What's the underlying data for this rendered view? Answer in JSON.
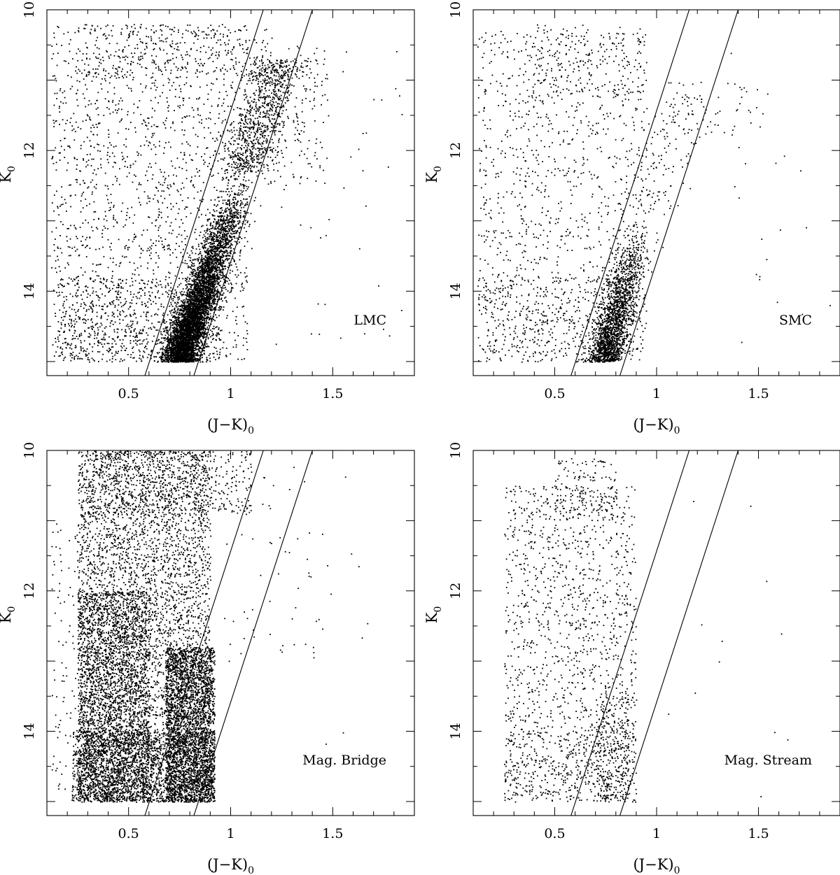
{
  "chart_data": [
    {
      "type": "scatter",
      "panel_label": "LMC",
      "xlabel": "(J−K)",
      "xlabel_subscript": "0",
      "ylabel": "K",
      "ylabel_subscript": "0",
      "xlim": [
        0.1,
        1.9
      ],
      "ylim": [
        10.0,
        15.2
      ],
      "y_inverted": true,
      "xticks": [
        0.5,
        1,
        1.5
      ],
      "xtick_labels": [
        "0.5",
        "1",
        "1.5"
      ],
      "yticks": [
        10,
        12,
        14
      ],
      "ytick_labels": [
        "10",
        "12",
        "14"
      ],
      "grid": false,
      "legend": "none",
      "lines": [
        {
          "name": "",
          "points": [
            [
              0.58,
              15.2
            ],
            [
              1.16,
              10.0
            ]
          ]
        },
        {
          "name": "",
          "points": [
            [
              0.82,
              15.2
            ],
            [
              1.4,
              10.0
            ]
          ]
        }
      ],
      "populations": [
        {
          "comment_free": true,
          "kind": "uniform",
          "n": 1700,
          "x": [
            0.12,
            1.08
          ],
          "y": [
            10.2,
            15.0
          ]
        },
        {
          "kind": "uniform",
          "n": 750,
          "x": [
            0.15,
            0.95
          ],
          "y": [
            13.8,
            15.0
          ]
        },
        {
          "kind": "uniform",
          "n": 250,
          "x": [
            0.25,
            1.2
          ],
          "y": [
            10.2,
            11.0
          ]
        },
        {
          "kind": "uniform",
          "n": 160,
          "x": [
            1.1,
            1.48
          ],
          "y": [
            10.5,
            12.5
          ]
        },
        {
          "kind": "uniform",
          "n": 45,
          "x": [
            1.2,
            1.85
          ],
          "y": [
            10.5,
            15.0
          ]
        },
        {
          "kind": "band",
          "n": 5500,
          "x_at_bottom": 0.74,
          "slope": 0.118,
          "width": 0.045,
          "y": [
            12.1,
            15.0
          ],
          "bottom_weight": 1.6
        },
        {
          "kind": "band",
          "n": 900,
          "x_at_bottom": 0.74,
          "slope": 0.118,
          "width": 0.07,
          "y": [
            10.7,
            12.3
          ],
          "bottom_weight": 0
        }
      ]
    },
    {
      "type": "scatter",
      "panel_label": "SMC",
      "xlabel": "(J−K)",
      "xlabel_subscript": "0",
      "ylabel": "K",
      "ylabel_subscript": "0",
      "xlim": [
        0.1,
        1.9
      ],
      "ylim": [
        10.0,
        15.2
      ],
      "y_inverted": true,
      "xticks": [
        0.5,
        1,
        1.5
      ],
      "xtick_labels": [
        "0.5",
        "1",
        "1.5"
      ],
      "yticks": [
        10,
        12,
        14
      ],
      "ytick_labels": [
        "10",
        "12",
        "14"
      ],
      "grid": false,
      "legend": "none",
      "lines": [
        {
          "name": "",
          "points": [
            [
              0.58,
              15.2
            ],
            [
              1.16,
              10.0
            ]
          ]
        },
        {
          "name": "",
          "points": [
            [
              0.82,
              15.2
            ],
            [
              1.4,
              10.0
            ]
          ]
        }
      ],
      "populations": [
        {
          "kind": "uniform",
          "n": 1150,
          "x": [
            0.12,
            0.95
          ],
          "y": [
            10.3,
            15.0
          ]
        },
        {
          "kind": "uniform",
          "n": 350,
          "x": [
            0.12,
            0.9
          ],
          "y": [
            13.8,
            15.0
          ]
        },
        {
          "kind": "uniform",
          "n": 140,
          "x": [
            0.35,
            0.95
          ],
          "y": [
            10.2,
            11.2
          ]
        },
        {
          "kind": "band",
          "n": 1800,
          "x_at_bottom": 0.74,
          "slope": 0.085,
          "width": 0.045,
          "y": [
            12.9,
            15.0
          ],
          "bottom_weight": 1.4
        },
        {
          "kind": "band",
          "n": 140,
          "x_at_bottom": 0.74,
          "slope": 0.1,
          "width": 0.07,
          "y": [
            11.2,
            12.9
          ],
          "bottom_weight": 0
        },
        {
          "kind": "uniform",
          "n": 55,
          "x": [
            1.05,
            1.55
          ],
          "y": [
            11.0,
            11.8
          ]
        },
        {
          "kind": "uniform",
          "n": 20,
          "x": [
            1.3,
            1.85
          ],
          "y": [
            10.5,
            15.0
          ]
        }
      ]
    },
    {
      "type": "scatter",
      "panel_label": "Mag. Bridge",
      "xlabel": "(J−K)",
      "xlabel_subscript": "0",
      "ylabel": "K",
      "ylabel_subscript": "0",
      "xlim": [
        0.1,
        1.9
      ],
      "ylim": [
        10.0,
        15.2
      ],
      "y_inverted": true,
      "xticks": [
        0.5,
        1,
        1.5
      ],
      "xtick_labels": [
        "0.5",
        "1",
        "1.5"
      ],
      "yticks": [
        10,
        12,
        14
      ],
      "ytick_labels": [
        "10",
        "12",
        "14"
      ],
      "grid": false,
      "legend": "none",
      "lines": [
        {
          "name": "",
          "points": [
            [
              0.58,
              15.2
            ],
            [
              1.16,
              10.0
            ]
          ]
        },
        {
          "name": "",
          "points": [
            [
              0.82,
              15.2
            ],
            [
              1.4,
              10.0
            ]
          ]
        }
      ],
      "populations": [
        {
          "kind": "uniform",
          "n": 4500,
          "x": [
            0.25,
            0.9
          ],
          "y": [
            10.0,
            15.0
          ]
        },
        {
          "kind": "uniform",
          "n": 2600,
          "x": [
            0.25,
            0.6
          ],
          "y": [
            12.0,
            15.0
          ]
        },
        {
          "kind": "uniform",
          "n": 2600,
          "x": [
            0.68,
            0.92
          ],
          "y": [
            12.8,
            15.0
          ]
        },
        {
          "kind": "uniform",
          "n": 1700,
          "x": [
            0.22,
            0.92
          ],
          "y": [
            14.0,
            15.0
          ]
        },
        {
          "kind": "uniform",
          "n": 500,
          "x": [
            0.3,
            1.1
          ],
          "y": [
            10.0,
            10.9
          ]
        },
        {
          "kind": "uniform",
          "n": 90,
          "x": [
            0.12,
            0.25
          ],
          "y": [
            11.0,
            15.0
          ]
        },
        {
          "kind": "uniform",
          "n": 60,
          "x": [
            0.95,
            1.45
          ],
          "y": [
            10.2,
            13.0
          ]
        },
        {
          "kind": "uniform",
          "n": 10,
          "x": [
            1.4,
            1.7
          ],
          "y": [
            10.3,
            14.8
          ]
        }
      ]
    },
    {
      "type": "scatter",
      "panel_label": "Mag. Stream",
      "xlabel": "(J−K)",
      "xlabel_subscript": "0",
      "ylabel": "K",
      "ylabel_subscript": "0",
      "xlim": [
        0.1,
        1.9
      ],
      "ylim": [
        10.0,
        15.2
      ],
      "y_inverted": true,
      "xticks": [
        0.5,
        1,
        1.5
      ],
      "xtick_labels": [
        "0.5",
        "1",
        "1.5"
      ],
      "yticks": [
        10,
        12,
        14
      ],
      "ytick_labels": [
        "10",
        "12",
        "14"
      ],
      "grid": false,
      "legend": "none",
      "lines": [
        {
          "name": "",
          "points": [
            [
              0.58,
              15.2
            ],
            [
              1.16,
              10.0
            ]
          ]
        },
        {
          "name": "",
          "points": [
            [
              0.82,
              15.2
            ],
            [
              1.4,
              10.0
            ]
          ]
        }
      ],
      "populations": [
        {
          "kind": "uniform",
          "n": 1350,
          "x": [
            0.25,
            0.9
          ],
          "y": [
            10.5,
            15.0
          ]
        },
        {
          "kind": "uniform",
          "n": 300,
          "x": [
            0.25,
            0.9
          ],
          "y": [
            14.0,
            15.0
          ]
        },
        {
          "kind": "uniform",
          "n": 150,
          "x": [
            0.5,
            0.8
          ],
          "y": [
            10.1,
            11.0
          ]
        },
        {
          "kind": "uniform",
          "n": 260,
          "x": [
            0.7,
            0.86
          ],
          "y": [
            13.5,
            15.0
          ]
        },
        {
          "kind": "uniform",
          "n": 12,
          "x": [
            0.95,
            1.65
          ],
          "y": [
            10.5,
            15.0
          ]
        }
      ]
    }
  ]
}
